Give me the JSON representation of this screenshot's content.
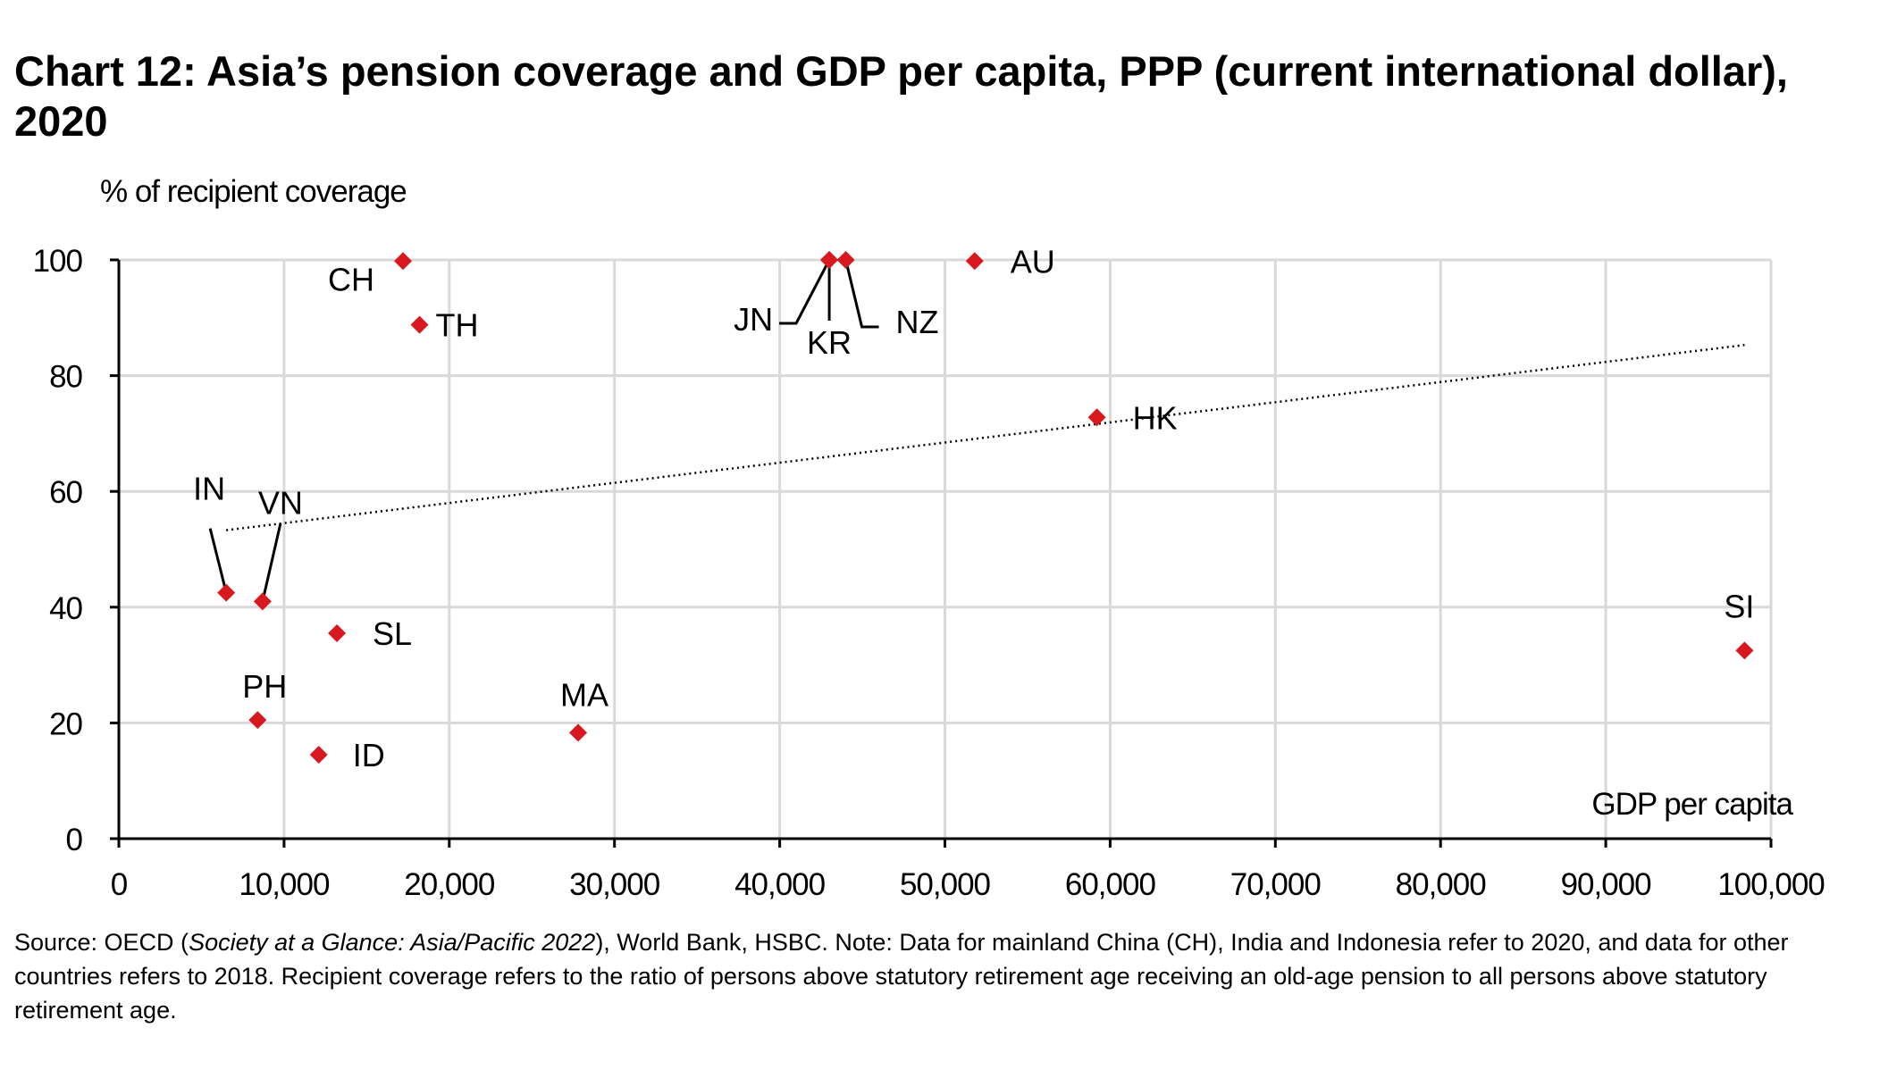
{
  "title": "Chart 12: Asia’s pension coverage and GDP per capita, PPP (current international dollar), 2020",
  "source": {
    "prefix": "Source: OECD (",
    "italic": "Society at a Glance: Asia/Pacific 2022",
    "suffix": "), World Bank, HSBC. Note: Data for mainland China (CH), India and Indonesia refer to 2020, and data for other countries refers to 2018. Recipient coverage refers to the ratio of persons above statutory retirement age receiving an old-age pension to all persons above statutory retirement age."
  },
  "chart_data": {
    "type": "scatter",
    "title": "Chart 12: Asia’s pension coverage and GDP per capita, PPP (current international dollar), 2020",
    "ylabel": "% of recipient coverage",
    "xlabel": "GDP per capita",
    "xlim": [
      0,
      100000
    ],
    "ylim": [
      0,
      100
    ],
    "x_ticks": [
      0,
      10000,
      20000,
      30000,
      40000,
      50000,
      60000,
      70000,
      80000,
      90000,
      100000
    ],
    "x_tick_labels": [
      "0",
      "10,000",
      "20,000",
      "30,000",
      "40,000",
      "50,000",
      "60,000",
      "70,000",
      "80,000",
      "90,000",
      "100,000"
    ],
    "y_ticks": [
      0,
      20,
      40,
      60,
      80,
      100
    ],
    "y_tick_labels": [
      "0",
      "20",
      "40",
      "60",
      "80",
      "100"
    ],
    "grid": true,
    "marker_color": "#d7191f",
    "grid_color": "#d9d9d9",
    "points": [
      {
        "label": "CH",
        "x": 17200,
        "y": 99.8
      },
      {
        "label": "TH",
        "x": 18200,
        "y": 88.8
      },
      {
        "label": "JN",
        "x": 43000,
        "y": 100
      },
      {
        "label": "KR",
        "x": 43000,
        "y": 100
      },
      {
        "label": "NZ",
        "x": 44000,
        "y": 100
      },
      {
        "label": "AU",
        "x": 51800,
        "y": 99.8
      },
      {
        "label": "HK",
        "x": 59200,
        "y": 72.8
      },
      {
        "label": "IN",
        "x": 6500,
        "y": 42.5
      },
      {
        "label": "VN",
        "x": 8700,
        "y": 41
      },
      {
        "label": "SL",
        "x": 13200,
        "y": 35.5
      },
      {
        "label": "PH",
        "x": 8400,
        "y": 20.5
      },
      {
        "label": "ID",
        "x": 12100,
        "y": 14.5
      },
      {
        "label": "MA",
        "x": 27800,
        "y": 18.3
      },
      {
        "label": "SI",
        "x": 98400,
        "y": 32.5
      }
    ],
    "trendline": {
      "style": "dotted",
      "from": {
        "x": 6500,
        "y": 53.3
      },
      "to": {
        "x": 98400,
        "y": 85.3
      }
    }
  }
}
